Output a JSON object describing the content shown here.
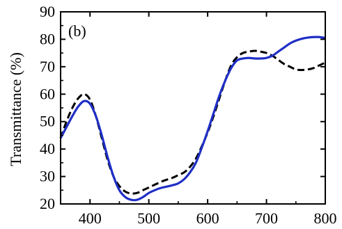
{
  "chart_data": {
    "type": "line",
    "panel_label": "(b)",
    "xlabel": "",
    "ylabel": "Transmittance (%)",
    "xlim": [
      350,
      800
    ],
    "ylim": [
      20,
      90
    ],
    "xticks": [
      400,
      500,
      600,
      700,
      800
    ],
    "yticks": [
      20,
      30,
      40,
      50,
      60,
      70,
      80,
      90
    ],
    "grid": false,
    "legend": "none",
    "series": [
      {
        "color": "#1f2fc6",
        "style": "solid",
        "x": [
          350,
          360,
          370,
          380,
          390,
          400,
          410,
          420,
          430,
          440,
          450,
          460,
          470,
          480,
          490,
          500,
          510,
          520,
          530,
          540,
          550,
          560,
          570,
          580,
          590,
          600,
          610,
          620,
          630,
          640,
          650,
          660,
          670,
          680,
          690,
          700,
          710,
          720,
          730,
          740,
          750,
          760,
          770,
          780,
          790,
          800
        ],
        "y": [
          44,
          48,
          52,
          55.5,
          57.5,
          56.5,
          52,
          45,
          37,
          30,
          25,
          22.5,
          21.5,
          21.5,
          22.5,
          24,
          25,
          25.8,
          26.3,
          26.8,
          27.5,
          29,
          31.5,
          35,
          40.5,
          46.5,
          53,
          59.5,
          65,
          69.5,
          72.3,
          73,
          73.2,
          73,
          73,
          73.2,
          74,
          75.5,
          77,
          78.5,
          79.5,
          80.2,
          80.6,
          80.8,
          80.8,
          80.5
        ]
      },
      {
        "color": "#000000",
        "style": "dashed",
        "x": [
          350,
          360,
          370,
          380,
          390,
          400,
          410,
          420,
          430,
          440,
          450,
          460,
          470,
          480,
          490,
          500,
          510,
          520,
          530,
          540,
          550,
          560,
          570,
          580,
          590,
          600,
          610,
          620,
          630,
          640,
          650,
          660,
          670,
          680,
          690,
          700,
          710,
          720,
          730,
          740,
          750,
          760,
          770,
          780,
          790,
          800
        ],
        "y": [
          44,
          50,
          55,
          58.5,
          60,
          58,
          52,
          44,
          36,
          30,
          26.5,
          24.5,
          23.8,
          24,
          25,
          26,
          27,
          28,
          28.8,
          29.5,
          30.5,
          31.5,
          33.5,
          36.5,
          41,
          46,
          52,
          58.5,
          65,
          70.5,
          73.5,
          75,
          75.5,
          75.8,
          75.5,
          75,
          74,
          72.5,
          71,
          70,
          69,
          68.8,
          69,
          69.5,
          70.5,
          71.5
        ]
      }
    ]
  }
}
